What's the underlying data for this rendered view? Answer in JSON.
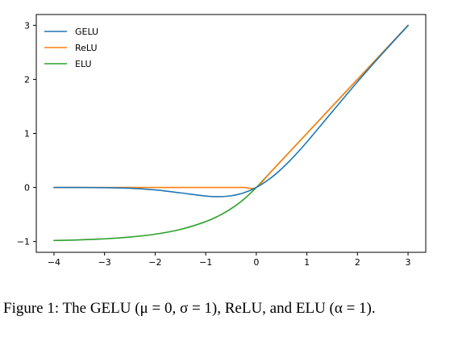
{
  "chart_data": {
    "type": "line",
    "xlim": [
      -4.35,
      3.35
    ],
    "ylim": [
      -1.2,
      3.2
    ],
    "xticks": [
      -4,
      -3,
      -2,
      -1,
      0,
      1,
      2,
      3
    ],
    "yticks": [
      -1,
      0,
      1,
      2,
      3
    ],
    "xtick_labels": [
      "−4",
      "−3",
      "−2",
      "−1",
      "0",
      "1",
      "2",
      "3"
    ],
    "ytick_labels": [
      "−1",
      "0",
      "1",
      "2",
      "3"
    ],
    "grid": false,
    "legend_position": "top-left",
    "x": [
      -4.0,
      -3.5,
      -3.0,
      -2.5,
      -2.0,
      -1.5,
      -1.0,
      -0.75,
      -0.5,
      -0.25,
      0.0,
      0.25,
      0.5,
      0.75,
      1.0,
      1.5,
      2.0,
      2.5,
      3.0
    ],
    "series": [
      {
        "name": "GELU",
        "color": "#1f77b4",
        "values": [
          -0.0001,
          -0.0008,
          -0.004,
          -0.0155,
          -0.0455,
          -0.1002,
          -0.1587,
          -0.17,
          -0.1543,
          -0.1003,
          0.0,
          0.1497,
          0.3457,
          0.58,
          0.8413,
          1.3998,
          1.9545,
          2.4845,
          2.996
        ]
      },
      {
        "name": "ReLU",
        "color": "#ff7f0e",
        "values": [
          0,
          0,
          0,
          0,
          0,
          0,
          0,
          0,
          0,
          0,
          0,
          0.25,
          0.5,
          0.75,
          1.0,
          1.5,
          2.0,
          2.5,
          3.0
        ]
      },
      {
        "name": "ELU",
        "color": "#2ca02c",
        "values": [
          -0.9817,
          -0.9698,
          -0.9502,
          -0.9179,
          -0.8647,
          -0.7769,
          -0.6321,
          -0.5276,
          -0.3935,
          -0.2212,
          0.0,
          0.25,
          0.5,
          0.75,
          1.0,
          1.5,
          2.0,
          2.5,
          3.0
        ]
      }
    ]
  },
  "caption": "Figure 1: The GELU (μ = 0, σ = 1), ReLU, and ELU (α = 1)."
}
